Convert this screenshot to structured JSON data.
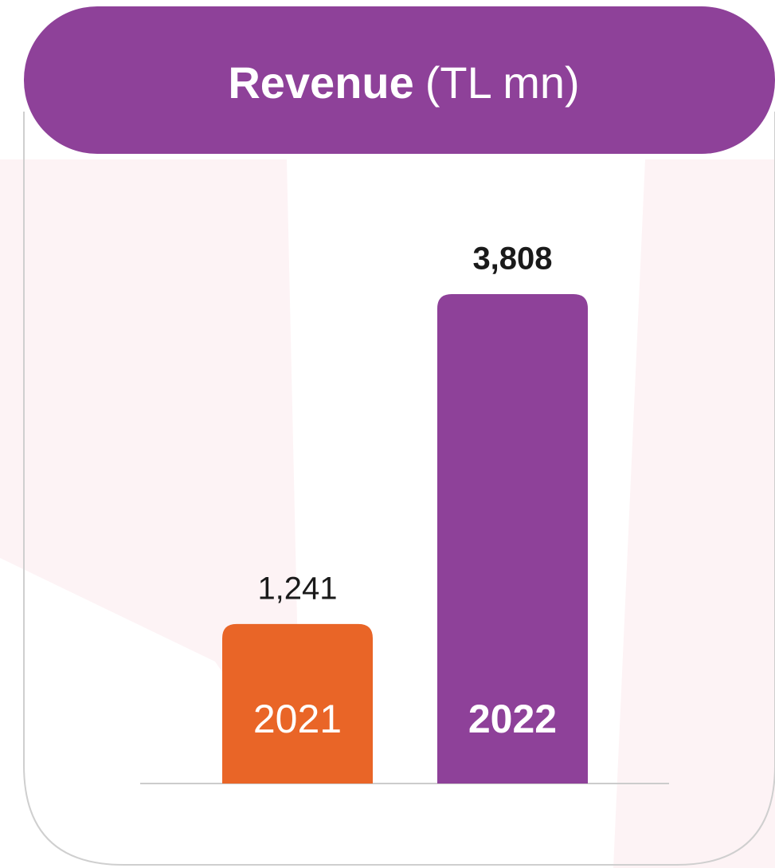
{
  "chart_data": {
    "type": "bar",
    "title": "Revenue",
    "unit": "(TL mn)",
    "categories": [
      "2021",
      "2022"
    ],
    "values": [
      1241,
      3808
    ],
    "value_labels": [
      "1,241",
      "3,808"
    ],
    "colors": [
      "#E96527",
      "#8E4199"
    ],
    "bold": [
      false,
      true
    ]
  }
}
